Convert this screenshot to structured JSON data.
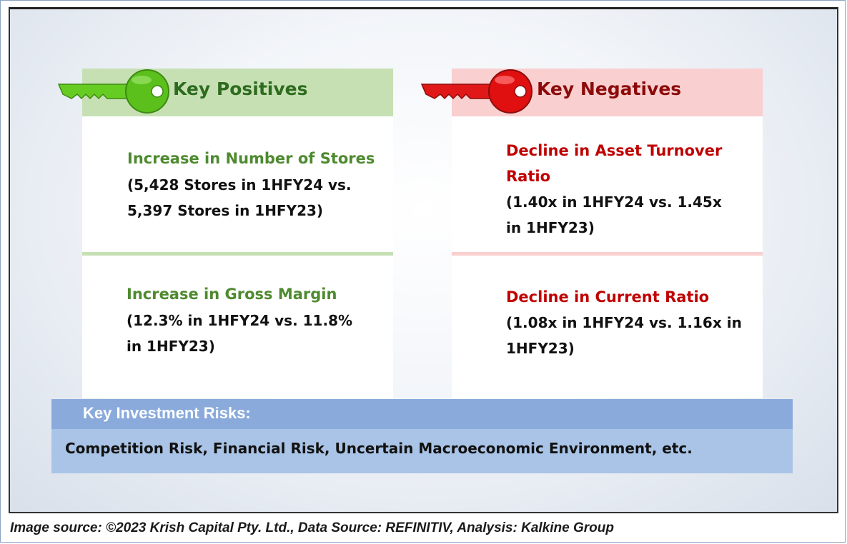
{
  "positives": {
    "heading": "Key Positives",
    "items": [
      {
        "title": "Increase in Number of Stores",
        "detail": "(5,428 Stores in 1HFY24 vs.\n5,397 Stores in 1HFY23)"
      },
      {
        "title": "Increase in Gross Margin",
        "detail": "(12.3% in 1HFY24 vs. 11.8%\nin 1HFY23)"
      }
    ],
    "icon": "green-key-icon",
    "color": "#4e8a2f"
  },
  "negatives": {
    "heading": "Key Negatives",
    "items": [
      {
        "title": "Decline in Asset Turnover\nRatio",
        "detail": "(1.40x in 1HFY24 vs. 1.45x\nin 1HFY23)"
      },
      {
        "title": "Decline in Current Ratio",
        "detail": "(1.08x in 1HFY24 vs. 1.16x in\n1HFY23)"
      }
    ],
    "icon": "red-key-icon",
    "color": "#c00000"
  },
  "risks": {
    "heading": "Key Investment Risks:",
    "text": "Competition Risk, Financial Risk, Uncertain Macroeconomic Environment, etc."
  },
  "caption": "Image source: ©2023 Krish Capital Pty. Ltd., Data Source: REFINITIV, Analysis: Kalkine Group"
}
